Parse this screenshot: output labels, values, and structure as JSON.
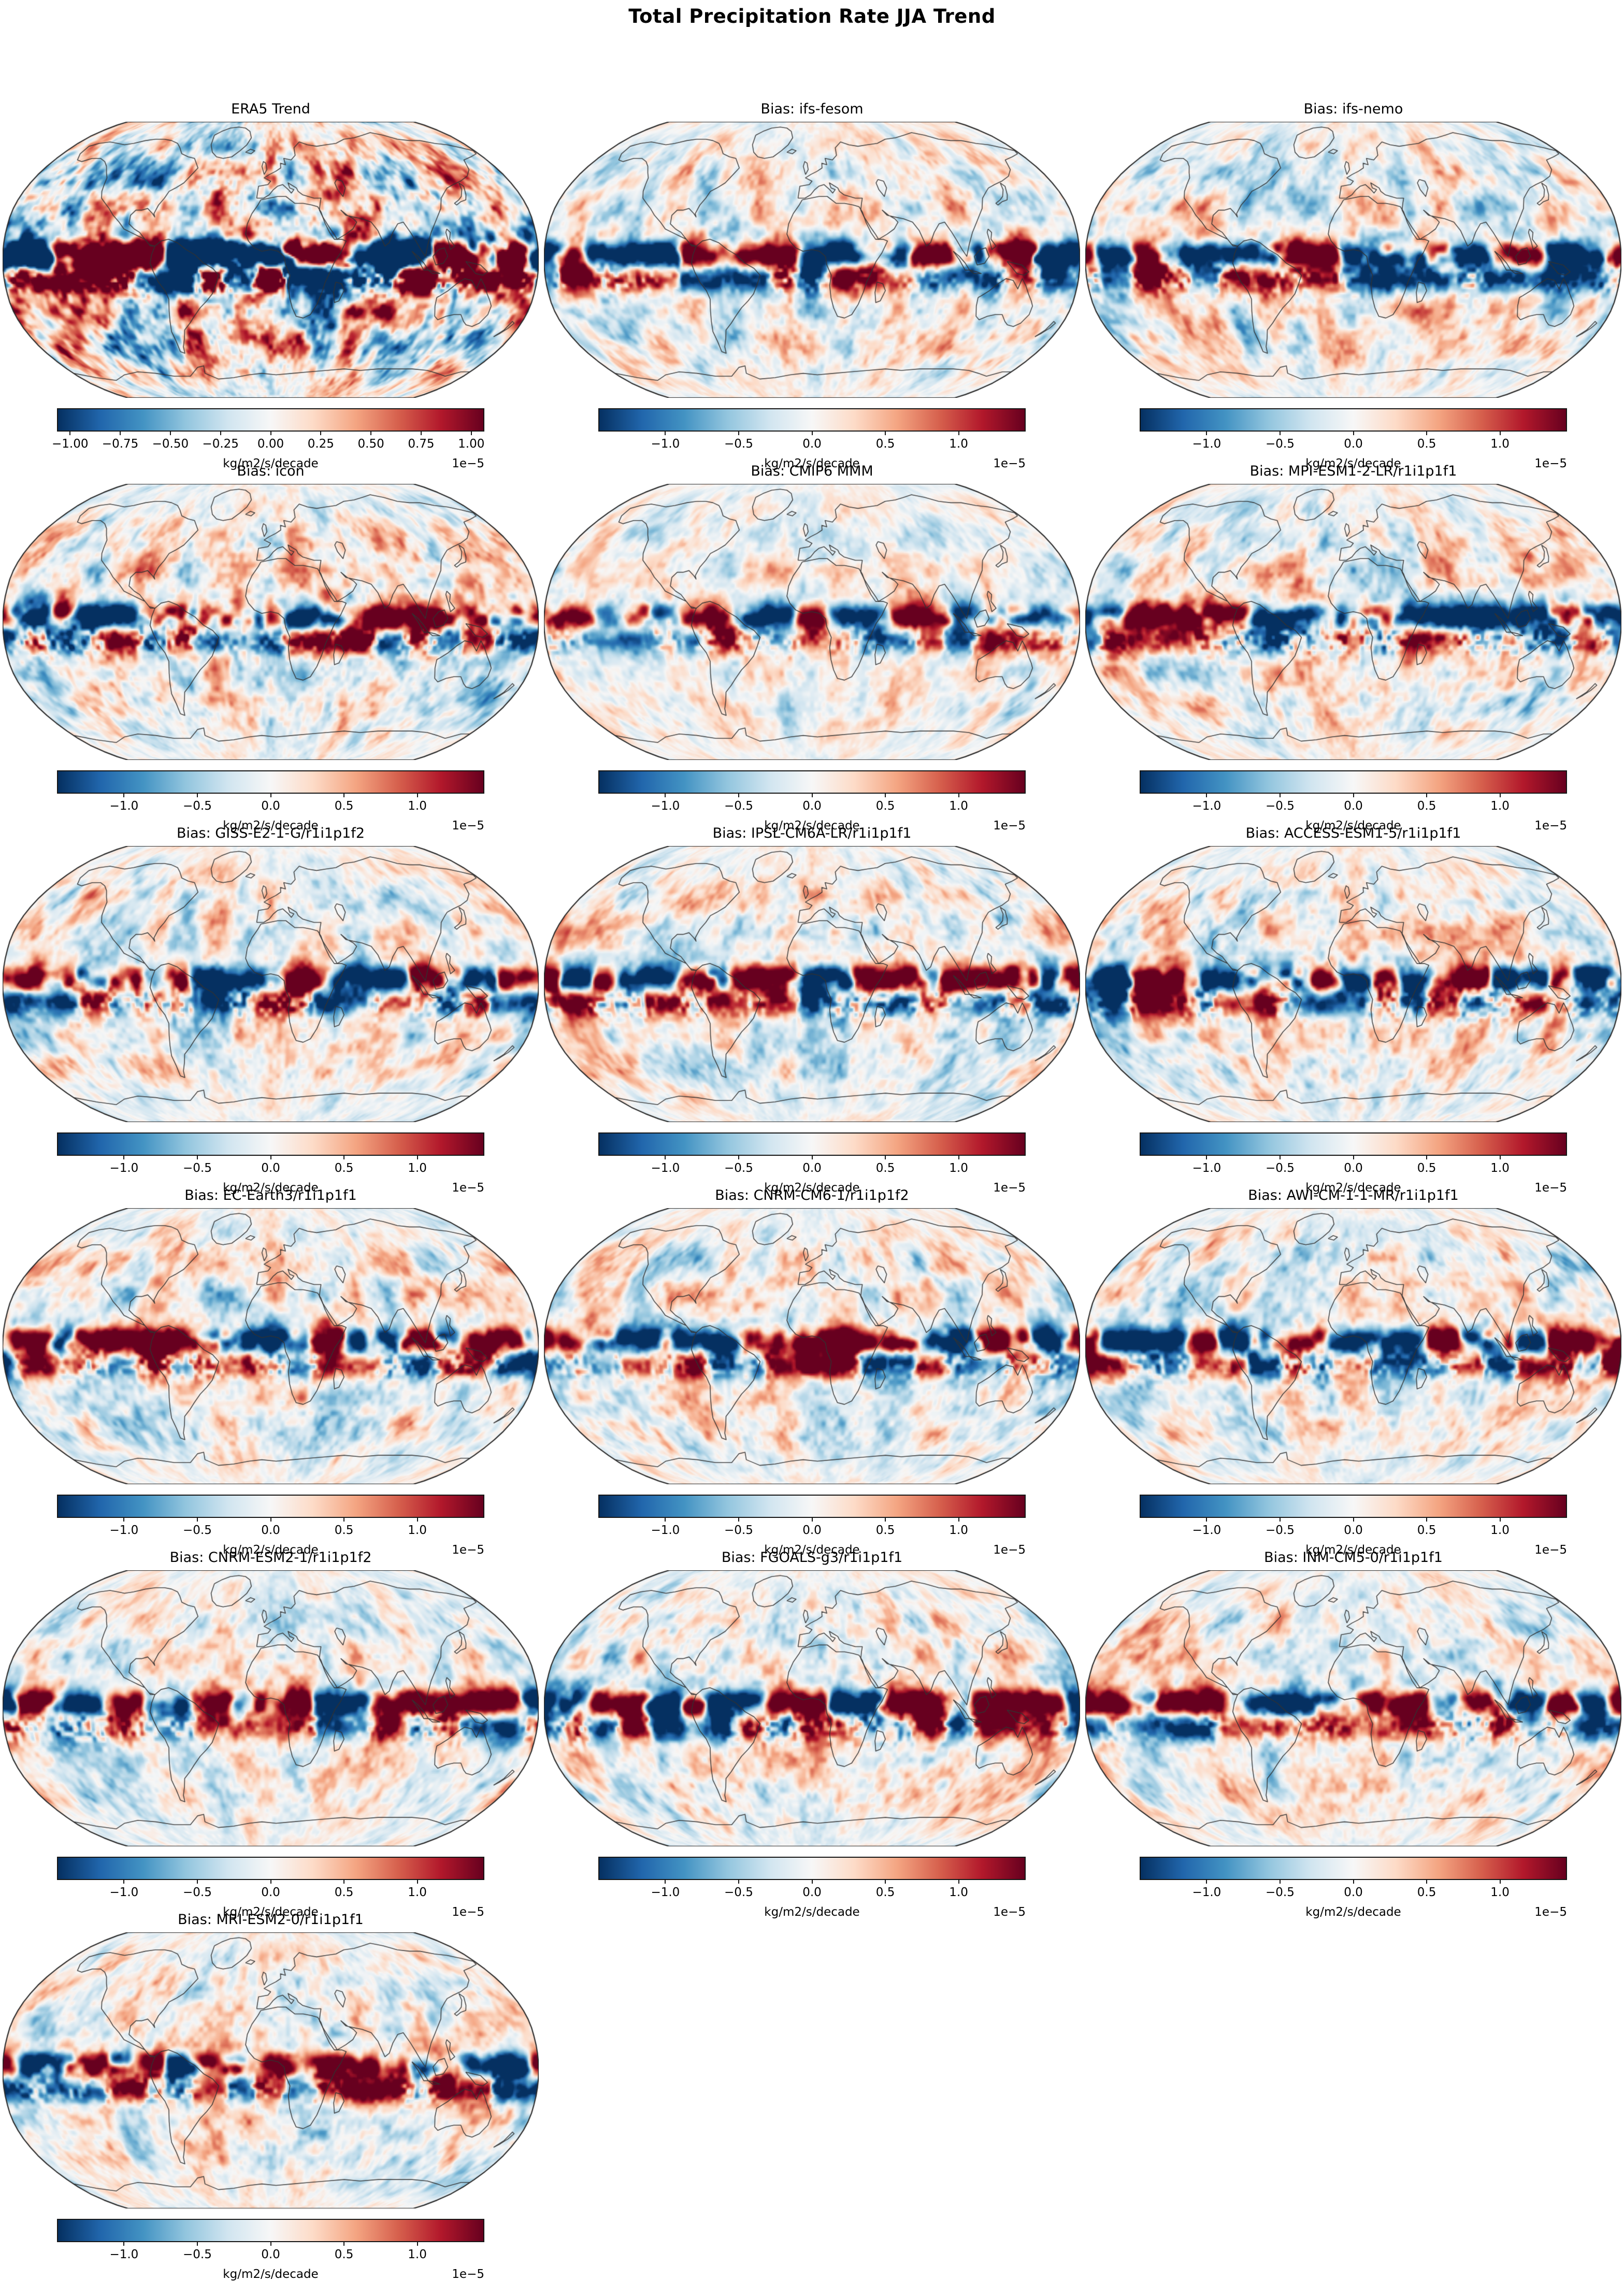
{
  "figure_title": "Total Precipitation Rate JJA Trend",
  "colorbar": {
    "unit_label": "kg/m2/s/decade",
    "offset_label": "1e−5",
    "colormap_stops": [
      "#053061",
      "#2166ac",
      "#4393c3",
      "#92c5de",
      "#d1e5f0",
      "#f7f7f7",
      "#fddbc7",
      "#f4a582",
      "#d6604d",
      "#b2182b",
      "#67001f"
    ],
    "styles": {
      "era5": {
        "vmax": 1.06,
        "ticks": [
          {
            "v": -1.0,
            "label": "−1.00"
          },
          {
            "v": -0.75,
            "label": "−0.75"
          },
          {
            "v": -0.5,
            "label": "−0.50"
          },
          {
            "v": -0.25,
            "label": "−0.25"
          },
          {
            "v": 0.0,
            "label": "0.00"
          },
          {
            "v": 0.25,
            "label": "0.25"
          },
          {
            "v": 0.5,
            "label": "0.50"
          },
          {
            "v": 0.75,
            "label": "0.75"
          },
          {
            "v": 1.0,
            "label": "1.00"
          }
        ]
      },
      "bias": {
        "vmax": 1.45,
        "ticks": [
          {
            "v": -1.0,
            "label": "−1.0"
          },
          {
            "v": -0.5,
            "label": "−0.5"
          },
          {
            "v": 0.0,
            "label": "0.0"
          },
          {
            "v": 0.5,
            "label": "0.5"
          },
          {
            "v": 1.0,
            "label": "1.0"
          }
        ]
      }
    }
  },
  "panels": [
    {
      "title": "ERA5 Trend",
      "cbar": "era5",
      "strength": 1.18
    },
    {
      "title": "Bias: ifs-fesom",
      "cbar": "bias",
      "strength": 0.85
    },
    {
      "title": "Bias: ifs-nemo",
      "cbar": "bias",
      "strength": 0.85
    },
    {
      "title": "Bias: icon",
      "cbar": "bias",
      "strength": 0.95
    },
    {
      "title": "Bias: CMIP6 MMM",
      "cbar": "bias",
      "strength": 0.68
    },
    {
      "title": "Bias: MPI-ESM1-2-LR/r1i1p1f1",
      "cbar": "bias",
      "strength": 0.82
    },
    {
      "title": "Bias: GISS-E2-1-G/r1i1p1f2",
      "cbar": "bias",
      "strength": 0.8
    },
    {
      "title": "Bias: IPSL-CM6A-LR/r1i1p1f1",
      "cbar": "bias",
      "strength": 0.8
    },
    {
      "title": "Bias: ACCESS-ESM1-5/r1i1p1f1",
      "cbar": "bias",
      "strength": 0.84
    },
    {
      "title": "Bias: EC-Earth3/r1i1p1f1",
      "cbar": "bias",
      "strength": 0.82
    },
    {
      "title": "Bias: CNRM-CM6-1/r1i1p1f2",
      "cbar": "bias",
      "strength": 0.8
    },
    {
      "title": "Bias: AWI-CM-1-1-MR/r1i1p1f1",
      "cbar": "bias",
      "strength": 0.8
    },
    {
      "title": "Bias: CNRM-ESM2-1/r1i1p1f2",
      "cbar": "bias",
      "strength": 0.78
    },
    {
      "title": "Bias: FGOALS-g3/r1i1p1f1",
      "cbar": "bias",
      "strength": 0.84
    },
    {
      "title": "Bias: INM-CM5-0/r1i1p1f1",
      "cbar": "bias",
      "strength": 0.78
    },
    {
      "title": "Bias: MRI-ESM2-0/r1i1p1f1",
      "cbar": "bias",
      "strength": 0.82
    }
  ],
  "chart_data": {
    "type": "heatmap",
    "subtype": "global-map-small-multiples",
    "projection": "robinson",
    "title": "Total Precipitation Rate JJA Trend",
    "n_panels": 16,
    "grid": {
      "rows": 6,
      "cols": 3,
      "last_row_panels": 1
    },
    "panel_titles": [
      "ERA5 Trend",
      "Bias: ifs-fesom",
      "Bias: ifs-nemo",
      "Bias: icon",
      "Bias: CMIP6 MMM",
      "Bias: MPI-ESM1-2-LR/r1i1p1f1",
      "Bias: GISS-E2-1-G/r1i1p1f2",
      "Bias: IPSL-CM6A-LR/r1i1p1f1",
      "Bias: ACCESS-ESM1-5/r1i1p1f1",
      "Bias: EC-Earth3/r1i1p1f1",
      "Bias: CNRM-CM6-1/r1i1p1f2",
      "Bias: AWI-CM-1-1-MR/r1i1p1f1",
      "Bias: CNRM-ESM2-1/r1i1p1f2",
      "Bias: FGOALS-g3/r1i1p1f1",
      "Bias: INM-CM5-0/r1i1p1f1",
      "Bias: MRI-ESM2-0/r1i1p1f1"
    ],
    "colormap": "RdBu_r",
    "colorbar_unit": "kg/m2/s/decade",
    "scale_factor": 1e-05,
    "era5_colorbar_ticks": [
      -1.0,
      -0.75,
      -0.5,
      -0.25,
      0.0,
      0.25,
      0.5,
      0.75,
      1.0
    ],
    "era5_colorbar_range": [
      -1.06,
      1.06
    ],
    "bias_colorbar_ticks": [
      -1.0,
      -0.5,
      0.0,
      0.5,
      1.0
    ],
    "bias_colorbar_range": [
      -1.45,
      1.45
    ],
    "legend_position": "below-each-panel",
    "grid_lines": false
  }
}
